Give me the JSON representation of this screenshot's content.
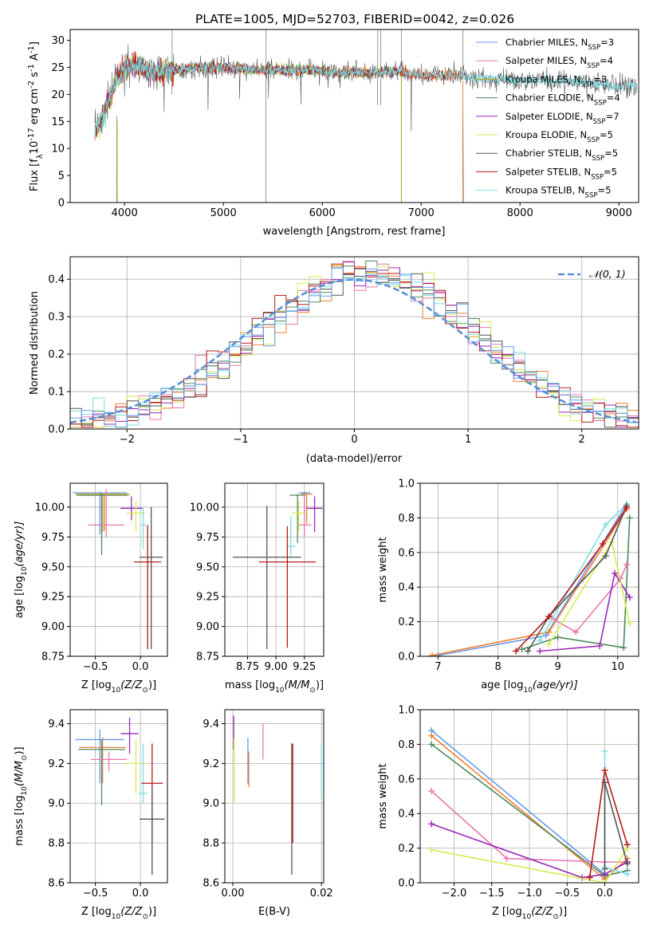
{
  "title": "PLATE=1005, MJD=52703, FIBERID=0042, z=0.026",
  "colors": {
    "Chabrier MILES": "#6699ee",
    "Salpeter MILES": "#e878b0",
    "Kroupa MILES": "#bfa820",
    "Chabrier ELODIE": "#4e8a5a",
    "Salpeter ELODIE": "#9b28b8",
    "Kroupa ELODIE": "#d6ec52",
    "Chabrier STELIB": "#555555",
    "Salpeter STELIB": "#b81818",
    "Kroupa STELIB": "#7fdde0",
    "extra_orange": "#f08030",
    "gauss": "#5b8ed6"
  },
  "chart_data": [
    {
      "type": "line",
      "panel": "spectrum",
      "title": "PLATE=1005, MJD=52703, FIBERID=0042, z=0.026",
      "xlabel": "wavelength [Angstrom, rest frame]",
      "ylabel_main": "Flux [f",
      "ylabel_sub": "λ",
      "ylabel_rest": "10",
      "ylabel_sup1": "-17",
      "ylabel_rest2": " erg cm",
      "ylabel_sup2": "-2",
      "ylabel_rest3": " s",
      "ylabel_sup3": "-1",
      "ylabel_rest4": " A",
      "ylabel_sup4": "-1",
      "ylabel_end": "]",
      "xlim": [
        3450,
        9200
      ],
      "ylim": [
        0,
        32
      ],
      "xticks": [
        "4000",
        "5000",
        "6000",
        "7000",
        "8000",
        "9000"
      ],
      "yticks": [
        "0",
        "5",
        "10",
        "15",
        "20",
        "25",
        "30"
      ],
      "legend_position": "upper right",
      "legend": [
        {
          "name": "Chabrier MILES, N",
          "sub": "SSP",
          "value": "=3",
          "key": "Chabrier MILES"
        },
        {
          "name": "Salpeter MILES, N",
          "sub": "SSP",
          "value": "=4",
          "key": "Salpeter MILES"
        },
        {
          "name": "Kroupa MILES, N",
          "sub": "SSP",
          "value": "=3",
          "key": "Kroupa MILES"
        },
        {
          "name": "Chabrier ELODIE, N",
          "sub": "SSP",
          "value": "=4",
          "key": "Chabrier ELODIE"
        },
        {
          "name": "Salpeter ELODIE, N",
          "sub": "SSP",
          "value": "=7",
          "key": "Salpeter ELODIE"
        },
        {
          "name": "Kroupa ELODIE, N",
          "sub": "SSP",
          "value": "=5",
          "key": "Kroupa ELODIE"
        },
        {
          "name": "Chabrier STELIB, N",
          "sub": "SSP",
          "value": "=5",
          "key": "Chabrier STELIB"
        },
        {
          "name": "Salpeter STELIB, N",
          "sub": "SSP",
          "value": "=5",
          "key": "Salpeter STELIB"
        },
        {
          "name": "Kroupa STELIB, N",
          "sub": "SSP",
          "value": "=5",
          "key": "Kroupa STELIB"
        }
      ],
      "continuum": {
        "x": [
          3700,
          3800,
          3900,
          4000,
          4100,
          4300,
          4500,
          4800,
          5000,
          5300,
          5600,
          5900,
          6200,
          6500,
          6800,
          7000,
          7300,
          7500,
          8000,
          8500,
          9000,
          9200
        ],
        "y": [
          13,
          17,
          22,
          25,
          25.5,
          24,
          24.5,
          25,
          25,
          24.5,
          24.5,
          24.5,
          24,
          24,
          24.3,
          23.5,
          23.5,
          23,
          22.5,
          22.5,
          21.5,
          21.5
        ]
      }
    },
    {
      "type": "line",
      "panel": "residuals",
      "xlabel": "(data-model)/error",
      "ylabel": "Normed distribution",
      "xlim": [
        -2.5,
        2.5
      ],
      "ylim": [
        0,
        0.46
      ],
      "xticks": [
        "−2",
        "−1",
        "0",
        "1",
        "2"
      ],
      "yticks": [
        "0.0",
        "0.1",
        "0.2",
        "0.3",
        "0.4"
      ],
      "legend_position": "upper right",
      "gauss_label": "𝒩(0, 1)",
      "bin_width": 0.1,
      "gaussian": {
        "mu": 0,
        "sigma": 1
      }
    },
    {
      "type": "scatter",
      "panel": "age_vs_Z",
      "xlabel": "Z [log",
      "xlabel_sub": "10",
      "xlabel_rest": "(Z/Z",
      "xlabel_sun": "⊙",
      "xlabel_end": ")]",
      "ylabel": "age  [log",
      "ylabel_sub": "10",
      "ylabel_rest": "(age/yr)]",
      "xlim": [
        -0.78,
        0.3
      ],
      "ylim": [
        8.75,
        10.2
      ],
      "xticks": [
        "−0.5",
        "0.0"
      ],
      "yticks": [
        "8.75",
        "9.00",
        "9.25",
        "9.50",
        "9.75",
        "10.00"
      ],
      "points": [
        {
          "key": "Chabrier MILES",
          "x": -0.45,
          "xerr": 0.3,
          "y": 10.12,
          "yerr": [
            0.35,
            0.01
          ]
        },
        {
          "key": "Kroupa MILES",
          "x": -0.42,
          "xerr": 0.3,
          "y": 10.11,
          "yerr": [
            0.32,
            0.01
          ]
        },
        {
          "key": "extra_orange",
          "x": -0.4,
          "xerr": 0.27,
          "y": 10.1,
          "yerr": [
            0.3,
            0.01
          ]
        },
        {
          "key": "Chabrier ELODIE",
          "x": -0.43,
          "xerr": 0.28,
          "y": 10.1,
          "yerr": [
            0.5,
            0.01
          ]
        },
        {
          "key": "Salpeter MILES",
          "x": -0.38,
          "xerr": 0.2,
          "y": 9.85,
          "yerr": [
            0.1,
            0.3
          ]
        },
        {
          "key": "Salpeter ELODIE",
          "x": -0.1,
          "xerr": 0.12,
          "y": 9.99,
          "yerr": [
            0.1,
            0.1
          ]
        },
        {
          "key": "Kroupa ELODIE",
          "x": -0.05,
          "xerr": 0.1,
          "y": 9.95,
          "yerr": [
            0.15,
            0.1
          ]
        },
        {
          "key": "Kroupa STELIB",
          "x": 0.03,
          "xerr": 0.03,
          "y": 9.85,
          "yerr": [
            0.2,
            0.15
          ]
        },
        {
          "key": "Chabrier STELIB",
          "x": 0.12,
          "xerr": 0.13,
          "y": 9.58,
          "yerr": [
            0.77,
            0.42
          ]
        },
        {
          "key": "Salpeter STELIB",
          "x": 0.08,
          "xerr": 0.15,
          "y": 9.54,
          "yerr": [
            0.73,
            0.31
          ]
        }
      ]
    },
    {
      "type": "scatter",
      "panel": "age_vs_mass",
      "xlabel": "mass [log",
      "xlabel_sub": "10",
      "xlabel_rest": "(M/M",
      "xlabel_sun": "⊙",
      "xlabel_end": ")]",
      "xlim": [
        8.55,
        9.42
      ],
      "ylim": [
        8.75,
        10.2
      ],
      "xticks": [
        "8.75",
        "9.00",
        "9.25"
      ],
      "yticks": [
        "8.75",
        "9.00",
        "9.25",
        "9.50",
        "9.75",
        "10.00"
      ],
      "points": [
        {
          "key": "Chabrier MILES",
          "x": 9.25,
          "xerr": 0.05,
          "y": 10.12,
          "yerr": [
            0.2,
            0.01
          ]
        },
        {
          "key": "extra_orange",
          "x": 9.27,
          "xerr": 0.05,
          "y": 10.11,
          "yerr": [
            0.25,
            0.01
          ]
        },
        {
          "key": "Chabrier ELODIE",
          "x": 9.19,
          "xerr": 0.07,
          "y": 10.1,
          "yerr": [
            0.4,
            0.01
          ]
        },
        {
          "key": "Salpeter ELODIE",
          "x": 9.34,
          "xerr": 0.07,
          "y": 9.99,
          "yerr": [
            0.2,
            0.1
          ]
        },
        {
          "key": "Salpeter MILES",
          "x": 9.25,
          "xerr": 0.06,
          "y": 9.85,
          "yerr": [
            0.1,
            0.25
          ]
        },
        {
          "key": "Kroupa ELODIE",
          "x": 9.2,
          "xerr": 0.06,
          "y": 9.95,
          "yerr": [
            0.15,
            0.1
          ]
        },
        {
          "key": "Kroupa STELIB",
          "x": 9.13,
          "xerr": 0.04,
          "y": 9.67,
          "yerr": [
            0.1,
            0.25
          ]
        },
        {
          "key": "Chabrier STELIB",
          "x": 8.92,
          "xerr": 0.3,
          "y": 9.58,
          "yerr": [
            0.77,
            0.43
          ]
        },
        {
          "key": "Salpeter STELIB",
          "x": 9.1,
          "xerr": 0.25,
          "y": 9.54,
          "yerr": [
            0.72,
            0.3
          ]
        }
      ]
    },
    {
      "type": "line",
      "panel": "weight_vs_age",
      "xlabel": "age  [log",
      "xlabel_sub": "10",
      "xlabel_rest": "(age/yr)]",
      "ylabel": "mass weight",
      "xlim": [
        6.7,
        10.35
      ],
      "ylim": [
        0,
        1
      ],
      "xticks": [
        "7",
        "8",
        "9",
        "10"
      ],
      "yticks": [
        "0.0",
        "0.2",
        "0.4",
        "0.6",
        "0.8",
        "1.0"
      ],
      "series": [
        {
          "key": "Chabrier MILES",
          "x": [
            7.0,
            8.8,
            10.15
          ],
          "y": [
            0.005,
            0.12,
            0.88
          ]
        },
        {
          "key": "extra_orange",
          "x": [
            6.9,
            8.85,
            10.15
          ],
          "y": [
            0.005,
            0.14,
            0.85
          ]
        },
        {
          "key": "Chabrier ELODIE",
          "x": [
            8.4,
            9.0,
            10.1,
            10.2
          ],
          "y": [
            0.04,
            0.11,
            0.05,
            0.8
          ]
        },
        {
          "key": "Salpeter MILES",
          "x": [
            8.9,
            9.3,
            10.05,
            10.15
          ],
          "y": [
            0.22,
            0.14,
            0.45,
            0.53
          ]
        },
        {
          "key": "Salpeter ELODIE",
          "x": [
            8.7,
            9.7,
            9.95,
            10.2
          ],
          "y": [
            0.03,
            0.06,
            0.48,
            0.34
          ]
        },
        {
          "key": "Kroupa ELODIE",
          "x": [
            8.85,
            9.9,
            10.2
          ],
          "y": [
            0.07,
            0.66,
            0.19
          ]
        },
        {
          "key": "Kroupa STELIB",
          "x": [
            8.7,
            9.8,
            10.15
          ],
          "y": [
            0.09,
            0.76,
            0.88
          ]
        },
        {
          "key": "Chabrier STELIB",
          "x": [
            8.5,
            8.85,
            9.8,
            10.15
          ],
          "y": [
            0.03,
            0.23,
            0.58,
            0.87
          ]
        },
        {
          "key": "Salpeter STELIB",
          "x": [
            8.3,
            8.85,
            9.75,
            10.15
          ],
          "y": [
            0.03,
            0.23,
            0.65,
            0.86
          ]
        }
      ]
    },
    {
      "type": "scatter",
      "panel": "mass_vs_Z",
      "xlabel": "Z [log",
      "xlabel_sub": "10",
      "xlabel_rest": "(Z/Z",
      "xlabel_sun": "⊙",
      "xlabel_end": ")]",
      "ylabel": "mass [log",
      "ylabel_sub": "10",
      "ylabel_rest": "(M/M",
      "ylabel_sun": "⊙",
      "ylabel_end": ")]",
      "xlim": [
        -0.78,
        0.3
      ],
      "ylim": [
        8.6,
        9.47
      ],
      "xticks": [
        "−0.5",
        "0.0"
      ],
      "yticks": [
        "8.6",
        "8.8",
        "9.0",
        "9.2",
        "9.4"
      ],
      "points": [
        {
          "key": "Chabrier MILES",
          "x": -0.45,
          "xerr": 0.27,
          "y": 9.32,
          "yerr": [
            0.22,
            0.05
          ]
        },
        {
          "key": "extra_orange",
          "x": -0.42,
          "xerr": 0.26,
          "y": 9.28,
          "yerr": [
            0.18,
            0.05
          ]
        },
        {
          "key": "Chabrier ELODIE",
          "x": -0.43,
          "xerr": 0.26,
          "y": 9.27,
          "yerr": [
            0.28,
            0.05
          ]
        },
        {
          "key": "Salpeter ELODIE",
          "x": -0.12,
          "xerr": 0.1,
          "y": 9.35,
          "yerr": [
            0.1,
            0.08
          ]
        },
        {
          "key": "Salpeter MILES",
          "x": -0.35,
          "xerr": 0.2,
          "y": 9.22,
          "yerr": [
            0.06,
            0.04
          ]
        },
        {
          "key": "Kroupa ELODIE",
          "x": -0.05,
          "xerr": 0.12,
          "y": 9.2,
          "yerr": [
            0.15,
            0.12
          ]
        },
        {
          "key": "Kroupa STELIB",
          "x": 0.03,
          "xerr": 0.05,
          "y": 9.05,
          "yerr": [
            0.05,
            0.25
          ]
        },
        {
          "key": "Salpeter STELIB",
          "x": 0.13,
          "xerr": 0.12,
          "y": 9.1,
          "yerr": [
            0.3,
            0.2
          ]
        },
        {
          "key": "Chabrier STELIB",
          "x": 0.13,
          "xerr": 0.14,
          "y": 8.92,
          "yerr": [
            0.28,
            0.15
          ]
        }
      ]
    },
    {
      "type": "scatter",
      "panel": "mass_vs_EBV",
      "xlabel": "E(B-V)",
      "xlim": [
        -0.0018,
        0.0205
      ],
      "ylim": [
        8.6,
        9.47
      ],
      "xticks": [
        "0.00",
        "0.02"
      ],
      "yticks": [
        "8.6",
        "8.8",
        "9.0",
        "9.2",
        "9.4"
      ],
      "points": [
        {
          "key": "Salpeter ELODIE",
          "x": 0.0002,
          "y": 9.37,
          "yerr": [
            0.1,
            0.07
          ]
        },
        {
          "key": "Kroupa ELODIE",
          "x": 0.0003,
          "y": 9.2,
          "yerr": [
            0.2,
            0.13
          ]
        },
        {
          "key": "Chabrier MILES",
          "x": 0.0034,
          "y": 9.27,
          "yerr": [
            0.17,
            0.06
          ]
        },
        {
          "key": "extra_orange",
          "x": 0.0036,
          "y": 9.22,
          "yerr": [
            0.14,
            0.04
          ]
        },
        {
          "key": "Salpeter MILES",
          "x": 0.0068,
          "y": 9.34,
          "yerr": [
            0.12,
            0.06
          ]
        },
        {
          "key": "Chabrier STELIB",
          "x": 0.0133,
          "y": 9.02,
          "yerr": [
            0.38,
            0.28
          ]
        },
        {
          "key": "Salpeter STELIB",
          "x": 0.0135,
          "y": 9.05,
          "yerr": [
            0.25,
            0.25
          ]
        },
        {
          "key": "Kroupa STELIB",
          "x": 0.02,
          "y": 9.15,
          "yerr": [
            0.13,
            0.15
          ]
        }
      ]
    },
    {
      "type": "line",
      "panel": "weight_vs_Z",
      "xlabel": "Z [log",
      "xlabel_sub": "10",
      "xlabel_rest": "(Z/Z",
      "xlabel_sun": "⊙",
      "xlabel_end": ")]",
      "ylabel": "mass weight",
      "xlim": [
        -2.45,
        0.45
      ],
      "ylim": [
        0,
        1
      ],
      "xticks": [
        "−2.0",
        "−1.5",
        "−1.0",
        "−0.5",
        "0.0"
      ],
      "yticks": [
        "0.0",
        "0.2",
        "0.4",
        "0.6",
        "0.8",
        "1.0"
      ],
      "series": [
        {
          "key": "Chabrier MILES",
          "x": [
            -2.3,
            0.0
          ],
          "y": [
            0.88,
            0.05
          ]
        },
        {
          "key": "extra_orange",
          "x": [
            -2.3,
            0.0,
            0.3
          ],
          "y": [
            0.85,
            0.02,
            0.14
          ]
        },
        {
          "key": "Chabrier ELODIE",
          "x": [
            -2.3,
            0.0,
            0.3
          ],
          "y": [
            0.8,
            0.04,
            0.07
          ]
        },
        {
          "key": "Salpeter MILES",
          "x": [
            -2.3,
            -1.3,
            0.0,
            0.3
          ],
          "y": [
            0.53,
            0.14,
            0.12,
            0.12
          ]
        },
        {
          "key": "Salpeter ELODIE",
          "x": [
            -2.3,
            -0.3,
            0.0,
            0.3
          ],
          "y": [
            0.34,
            0.03,
            0.05,
            0.12
          ]
        },
        {
          "key": "Kroupa ELODIE",
          "x": [
            -2.3,
            0.0,
            0.3
          ],
          "y": [
            0.19,
            0.0,
            0.2
          ]
        },
        {
          "key": "Kroupa STELIB",
          "x": [
            0.0,
            0.0,
            0.3
          ],
          "y": [
            0.76,
            0.09,
            0.05
          ]
        },
        {
          "key": "Chabrier STELIB",
          "x": [
            0.0,
            0.0,
            0.3
          ],
          "y": [
            0.08,
            0.58,
            0.11
          ]
        },
        {
          "key": "Salpeter STELIB",
          "x": [
            -0.2,
            0.0,
            0.3
          ],
          "y": [
            0.03,
            0.65,
            0.22
          ]
        }
      ]
    }
  ]
}
